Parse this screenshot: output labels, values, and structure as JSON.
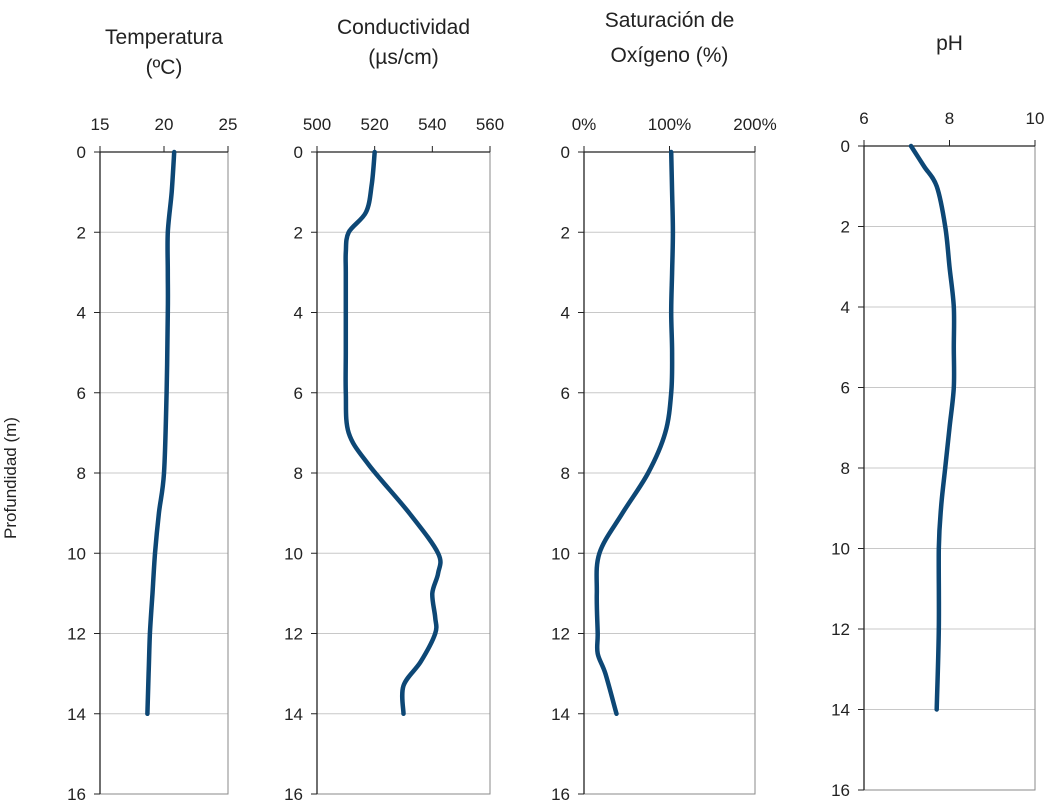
{
  "y_axis_label": "Profundidad (m)",
  "line_color": "#0d4775",
  "chart_data": [
    {
      "type": "line",
      "title_lines": [
        "Temperatura",
        "(ºC)"
      ],
      "xlim": [
        15,
        25
      ],
      "xticks": [
        15,
        20,
        25
      ],
      "xtick_labels": [
        "15",
        "20",
        "25"
      ],
      "ylim": [
        0,
        16
      ],
      "yticks": [
        0,
        2,
        4,
        6,
        8,
        10,
        12,
        14,
        16
      ],
      "ytick_labels": [
        "0",
        "2",
        "4",
        "6",
        "8",
        "10",
        "12",
        "14",
        "16"
      ],
      "ylabel": "Profundidad (m)",
      "orientation": "vertical-profile",
      "series": [
        {
          "x": [
            20.8,
            20.6,
            20.3,
            20.3,
            20.3,
            20.2,
            20.0,
            19.6,
            19.3,
            19.1,
            18.9,
            18.8,
            18.7
          ],
          "y": [
            0,
            1,
            2,
            3,
            4,
            6,
            8,
            9,
            10,
            11,
            12,
            13,
            14
          ]
        }
      ]
    },
    {
      "type": "line",
      "title_lines": [
        "Conductividad",
        "(µs/cm)"
      ],
      "xlim": [
        500,
        560
      ],
      "xticks": [
        500,
        520,
        540,
        560
      ],
      "xtick_labels": [
        "500",
        "520",
        "540",
        "560"
      ],
      "ylim": [
        0,
        16
      ],
      "yticks": [
        0,
        2,
        4,
        6,
        8,
        10,
        12,
        14,
        16
      ],
      "ytick_labels": [
        "0",
        "2",
        "4",
        "6",
        "8",
        "10",
        "12",
        "14",
        "16"
      ],
      "orientation": "vertical-profile",
      "series": [
        {
          "x": [
            520,
            519,
            517,
            511,
            510,
            510,
            510,
            510,
            510,
            511,
            518,
            532,
            542,
            542,
            540,
            541,
            541,
            536,
            530,
            530
          ],
          "y": [
            0,
            0.8,
            1.5,
            2,
            2.5,
            3,
            4,
            5,
            6,
            7,
            7.8,
            9,
            10,
            10.5,
            11,
            11.6,
            12,
            12.7,
            13.3,
            14
          ]
        }
      ]
    },
    {
      "type": "line",
      "title_lines": [
        "Saturación de",
        "Oxígeno (%)"
      ],
      "xlim": [
        0,
        200
      ],
      "xticks": [
        0,
        100,
        200
      ],
      "xtick_labels": [
        "0%",
        "100%",
        "200%"
      ],
      "ylim": [
        0,
        16
      ],
      "yticks": [
        0,
        2,
        4,
        6,
        8,
        10,
        12,
        14,
        16
      ],
      "ytick_labels": [
        "0",
        "2",
        "4",
        "6",
        "8",
        "10",
        "12",
        "14",
        "16"
      ],
      "orientation": "vertical-profile",
      "series": [
        {
          "x": [
            102,
            103,
            104,
            103,
            102,
            103,
            102,
            95,
            75,
            45,
            18,
            15,
            16,
            16,
            25,
            38
          ],
          "y": [
            0,
            1,
            2,
            3,
            4,
            5,
            6,
            7,
            8,
            9,
            10,
            11,
            12,
            12.5,
            13,
            14
          ]
        }
      ]
    },
    {
      "type": "line",
      "title_lines": [
        "pH"
      ],
      "xlim": [
        6,
        10
      ],
      "xticks": [
        6,
        8,
        10
      ],
      "xtick_labels": [
        "6",
        "8",
        "10"
      ],
      "ylim": [
        0,
        16
      ],
      "yticks": [
        0,
        2,
        4,
        6,
        8,
        10,
        12,
        14,
        16
      ],
      "ytick_labels": [
        "0",
        "2",
        "4",
        "6",
        "8",
        "10",
        "12",
        "14",
        "16"
      ],
      "orientation": "vertical-profile",
      "series": [
        {
          "x": [
            7.1,
            7.4,
            7.7,
            7.9,
            8.0,
            8.1,
            8.1,
            8.1,
            8.0,
            7.9,
            7.8,
            7.75,
            7.75,
            7.7
          ],
          "y": [
            0,
            0.5,
            1.0,
            2,
            3,
            4,
            5,
            6,
            7,
            8,
            9,
            10,
            12,
            14
          ]
        }
      ]
    }
  ]
}
